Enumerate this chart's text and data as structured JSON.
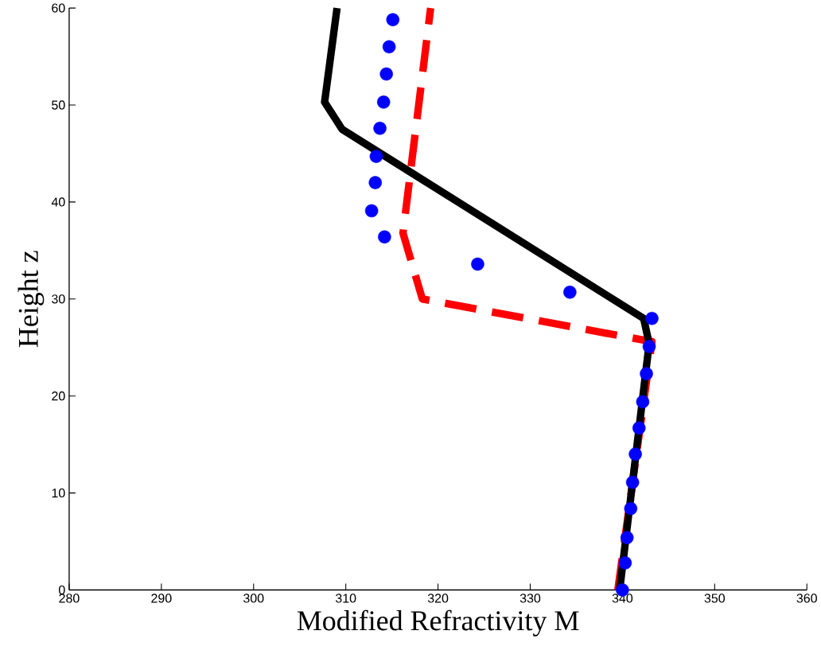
{
  "chart_data": {
    "type": "line",
    "xlabel": "Modified Refractivity M",
    "ylabel": "Height z",
    "xlim": [
      280,
      360
    ],
    "xticks": [
      280,
      290,
      300,
      310,
      320,
      330,
      340,
      350,
      360
    ],
    "ylim": [
      0,
      60
    ],
    "yticks": [
      0,
      10,
      20,
      30,
      40,
      50,
      60
    ],
    "grid": false,
    "series": [
      {
        "type": "scatter",
        "marker": "circle",
        "color": "#0000ff",
        "x": [
          340.0,
          340.3,
          340.5,
          340.9,
          341.1,
          341.4,
          341.8,
          342.2,
          342.6,
          342.9,
          343.2,
          334.3,
          324.3,
          314.2,
          312.8,
          313.2,
          313.3,
          313.7,
          314.1,
          314.4,
          314.7,
          315.1
        ],
        "values": [
          0,
          2.8,
          5.4,
          8.4,
          11.1,
          14.0,
          16.7,
          19.4,
          22.3,
          25.1,
          28.0,
          30.7,
          33.6,
          36.4,
          39.1,
          42.0,
          44.7,
          47.6,
          50.3,
          53.2,
          56.0,
          58.8
        ]
      },
      {
        "type": "line",
        "line_style": "dashed",
        "color": "#ff0000",
        "x": [
          339.5,
          343.2,
          318.3,
          316.2,
          319.2
        ],
        "values": [
          0,
          25.6,
          30.0,
          36.8,
          60
        ]
      },
      {
        "line_style": "solid",
        "color": "#000000",
        "x": [
          339.7,
          342.9,
          342.3,
          309.6,
          307.7,
          309.05
        ],
        "values": [
          0,
          25.4,
          28.0,
          47.5,
          50.3,
          60
        ]
      }
    ]
  }
}
